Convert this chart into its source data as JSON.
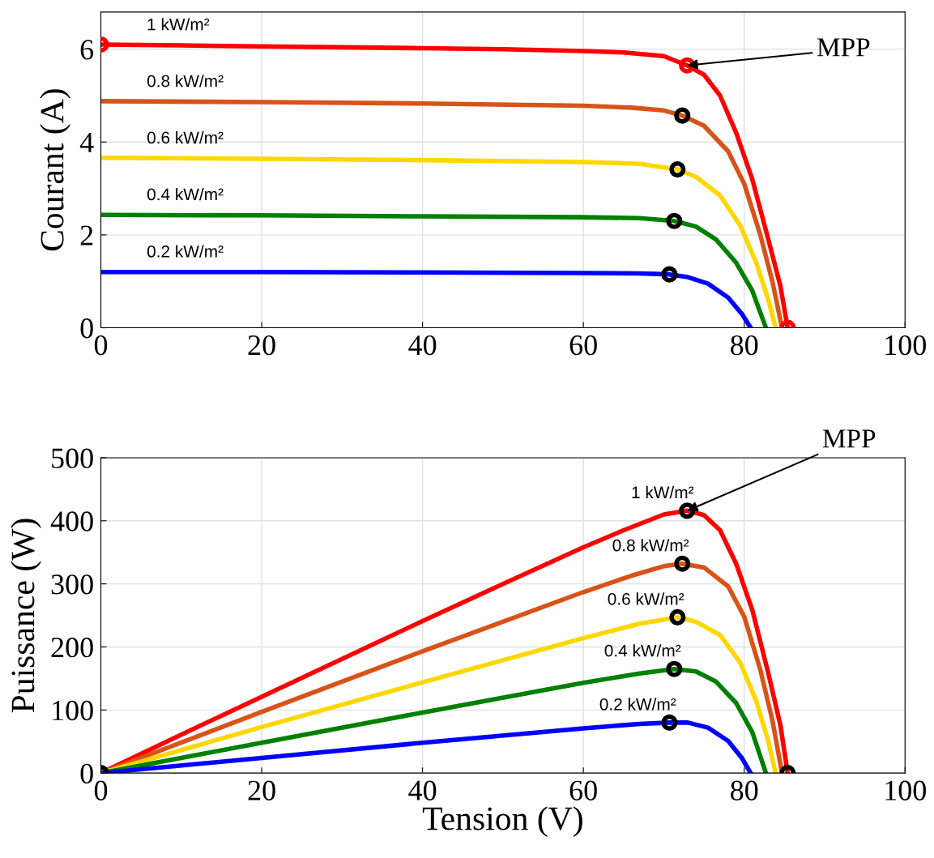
{
  "chart_data": [
    {
      "type": "line",
      "ylabel": "Courant (A)",
      "xlim": [
        0,
        100
      ],
      "xticks": [
        0,
        20,
        40,
        60,
        80,
        100
      ],
      "ylim": [
        0,
        6.8
      ],
      "yticks": [
        0,
        2,
        4,
        6
      ],
      "grid": true,
      "series": [
        {
          "color": "#ff0000",
          "x": [
            0,
            10,
            20,
            30,
            40,
            50,
            60,
            65,
            70,
            72.9,
            75,
            77,
            79,
            81,
            83,
            84.5,
            85.4
          ],
          "values": [
            6.1,
            6.08,
            6.06,
            6.04,
            6.02,
            6.0,
            5.96,
            5.93,
            5.85,
            5.65,
            5.45,
            5.0,
            4.2,
            3.2,
            1.9,
            0.9,
            0
          ]
        },
        {
          "color": "#d95319",
          "x": [
            0,
            20,
            40,
            60,
            66,
            70,
            72.3,
            75,
            78,
            80,
            82,
            83.5,
            84.7
          ],
          "values": [
            4.88,
            4.86,
            4.83,
            4.78,
            4.74,
            4.68,
            4.57,
            4.35,
            3.8,
            3.1,
            2.0,
            1.0,
            0
          ]
        },
        {
          "color": "#ffd700",
          "x": [
            0,
            20,
            40,
            60,
            67,
            71.7,
            74,
            77,
            79.5,
            81.5,
            83,
            83.9
          ],
          "values": [
            3.66,
            3.64,
            3.61,
            3.57,
            3.53,
            3.41,
            3.25,
            2.85,
            2.2,
            1.4,
            0.6,
            0
          ]
        },
        {
          "color": "#008000",
          "x": [
            0,
            20,
            40,
            60,
            67,
            71.3,
            74,
            76.5,
            79,
            81,
            82.7
          ],
          "values": [
            2.43,
            2.42,
            2.4,
            2.38,
            2.36,
            2.3,
            2.18,
            1.9,
            1.4,
            0.8,
            0
          ]
        },
        {
          "color": "#0000ff",
          "x": [
            0,
            20,
            40,
            60,
            67,
            70.7,
            73,
            75.5,
            78,
            79.7,
            80.8
          ],
          "values": [
            1.2,
            1.2,
            1.19,
            1.18,
            1.17,
            1.15,
            1.09,
            0.95,
            0.65,
            0.3,
            0
          ]
        },
        {
          "type": "scatter",
          "marker": "circle",
          "color": "#ff0000",
          "x": [
            0,
            72.9,
            85.4
          ],
          "values": [
            6.1,
            5.65,
            0
          ]
        },
        {
          "type": "scatter",
          "marker": "circle",
          "color": "#000000",
          "x": [
            72.3,
            71.7,
            71.3,
            70.7
          ],
          "values": [
            4.57,
            3.41,
            2.3,
            1.15
          ]
        }
      ],
      "annotations": [
        {
          "text": "1 kW/m²",
          "x": 5.7,
          "y": 6.09
        },
        {
          "text": "0.8 kW/m²",
          "x": 5.7,
          "y": 4.87
        },
        {
          "text": "0.6 kW/m²",
          "x": 5.7,
          "y": 3.65
        },
        {
          "text": "0.4 kW/m²",
          "x": 5.7,
          "y": 2.43
        },
        {
          "text": "0.2 kW/m²",
          "x": 5.7,
          "y": 1.2
        },
        {
          "text": "MPP",
          "x": 72.9,
          "y": 5.65
        }
      ]
    },
    {
      "type": "line",
      "xlabel": "Tension (V)",
      "ylabel": "Puissance (W)",
      "xlim": [
        0,
        100
      ],
      "xticks": [
        0,
        20,
        40,
        60,
        80,
        100
      ],
      "ylim": [
        0,
        500
      ],
      "yticks": [
        0,
        100,
        200,
        300,
        400,
        500
      ],
      "grid": true,
      "series": [
        {
          "color": "#ff0000",
          "x": [
            0,
            10,
            20,
            30,
            40,
            50,
            60,
            65,
            70,
            72.9,
            75,
            77,
            79,
            81,
            83,
            84.5,
            85.4
          ],
          "values": [
            0,
            61,
            121,
            181,
            241,
            300,
            358,
            385,
            410,
            416,
            409,
            385,
            332,
            259,
            158,
            76,
            0
          ]
        },
        {
          "color": "#d95319",
          "x": [
            0,
            20,
            40,
            60,
            66,
            70,
            72.3,
            75,
            78,
            80,
            82,
            83.5,
            84.7
          ],
          "values": [
            0,
            97,
            193,
            287,
            313,
            328,
            332,
            326,
            296,
            248,
            164,
            84,
            0
          ]
        },
        {
          "color": "#ffd700",
          "x": [
            0,
            20,
            40,
            60,
            67,
            71.7,
            74,
            77,
            79.5,
            81.5,
            83,
            83.9
          ],
          "values": [
            0,
            73,
            144,
            214,
            237,
            247,
            240,
            219,
            175,
            114,
            50,
            0
          ]
        },
        {
          "color": "#008000",
          "x": [
            0,
            20,
            40,
            60,
            67,
            71.3,
            74,
            76.5,
            79,
            81,
            82.7
          ],
          "values": [
            0,
            48,
            96,
            143,
            158,
            165,
            161,
            145,
            111,
            65,
            0
          ]
        },
        {
          "color": "#0000ff",
          "x": [
            0,
            20,
            40,
            60,
            67,
            70.7,
            73,
            75.5,
            78,
            79.7,
            80.8
          ],
          "values": [
            0,
            24,
            48,
            71,
            78,
            80,
            80,
            72,
            51,
            24,
            0
          ]
        },
        {
          "type": "scatter",
          "marker": "circle",
          "color": "#000000",
          "x": [
            0,
            72.9,
            72.3,
            71.7,
            71.3,
            70.7,
            85.4
          ],
          "values": [
            0,
            416,
            332,
            247,
            165,
            80,
            0
          ]
        }
      ],
      "annotations": [
        {
          "text": "1 kW/m²",
          "x": 72.9,
          "y": 416
        },
        {
          "text": "0.8 kW/m²",
          "x": 72.3,
          "y": 332
        },
        {
          "text": "0.6 kW/m²",
          "x": 71.7,
          "y": 247
        },
        {
          "text": "0.4 kW/m²",
          "x": 71.3,
          "y": 165
        },
        {
          "text": "0.2 kW/m²",
          "x": 70.7,
          "y": 80
        },
        {
          "text": "MPP",
          "x": 72.9,
          "y": 416
        }
      ]
    }
  ]
}
